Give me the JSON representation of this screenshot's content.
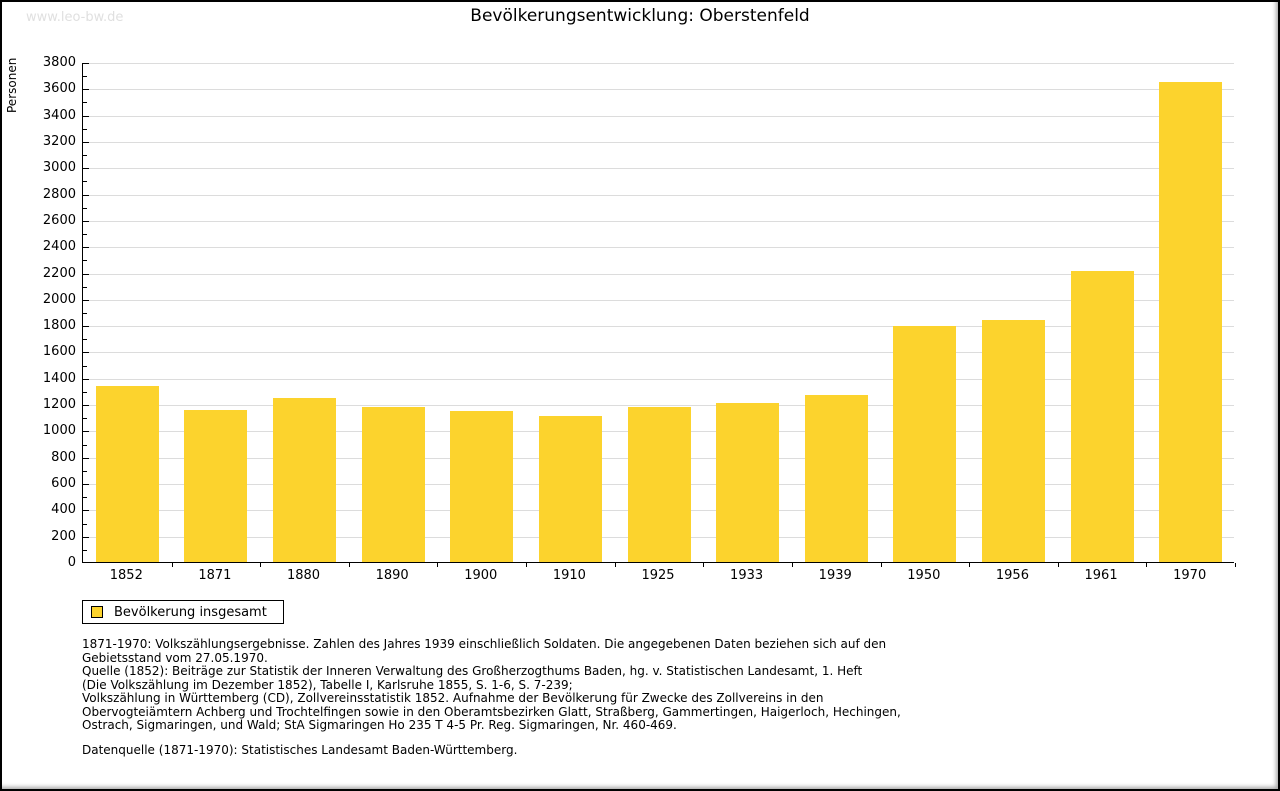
{
  "watermark": "www.leo-bw.de",
  "chart_data": {
    "type": "bar",
    "title": "Bevölkerungsentwicklung: Oberstenfeld",
    "ylabel": "Personen",
    "xlabel": "",
    "categories": [
      "1852",
      "1871",
      "1880",
      "1890",
      "1900",
      "1910",
      "1925",
      "1933",
      "1939",
      "1950",
      "1956",
      "1961",
      "1970"
    ],
    "series": [
      {
        "name": "Bevölkerung insgesamt",
        "values": [
          1335,
          1155,
          1250,
          1175,
          1150,
          1110,
          1180,
          1210,
          1270,
          1790,
          1840,
          2210,
          3650
        ]
      }
    ],
    "ylim": [
      0,
      3800
    ],
    "ytick_step": 200,
    "yminor_step": 100,
    "grid": true,
    "legend_position": "bottom-left",
    "bar_color": "#fcd32d",
    "grid_color": "#dcdcdc",
    "axis_color": "#000000"
  },
  "legend": {
    "label": "Bevölkerung insgesamt",
    "swatch_color": "#fcd32d"
  },
  "footnotes": {
    "lines": [
      "1871-1970: Volkszählungsergebnisse. Zahlen des Jahres 1939 einschließlich Soldaten. Die angegebenen Daten beziehen sich auf den",
      "Gebietsstand vom 27.05.1970.",
      "Quelle (1852): Beiträge zur Statistik der Inneren Verwaltung des Großherzogthums Baden, hg. v. Statistischen Landesamt, 1. Heft",
      "(Die Volkszählung im Dezember 1852), Tabelle I, Karlsruhe 1855, S. 1-6, S. 7-239;",
      "Volkszählung in Württemberg (CD), Zollvereinsstatistik 1852. Aufnahme der Bevölkerung für Zwecke des Zollvereins in den",
      "Obervogteiämtern Achberg und Trochtelfingen sowie in den Oberamtsbezirken Glatt, Straßberg, Gammertingen, Haigerloch, Hechingen,",
      "Ostrach, Sigmaringen, und Wald; StA Sigmaringen Ho 235 T 4-5 Pr. Reg. Sigmaringen, Nr. 460-469."
    ],
    "datasource": "Datenquelle (1871-1970): Statistisches Landesamt Baden-Württemberg."
  },
  "colors": {
    "watermark": "#e0e0e0",
    "text": "#000000",
    "background": "#ffffff",
    "page_border": "#000000"
  }
}
